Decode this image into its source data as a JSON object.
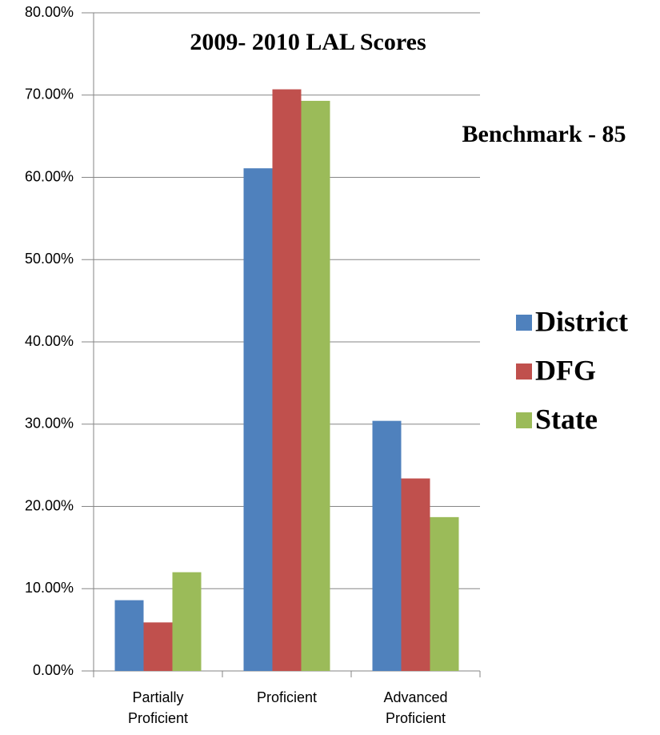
{
  "chart_data": {
    "type": "bar",
    "title": "2009- 2010 LAL Scores",
    "annotation": "Benchmark - 85",
    "categories": [
      "Partially Proficient",
      "Proficient",
      "Advanced Proficient"
    ],
    "series": [
      {
        "name": "District",
        "color": "#4f81bd",
        "values": [
          8.6,
          61.1,
          30.4
        ]
      },
      {
        "name": "DFG",
        "color": "#c0504d",
        "values": [
          5.9,
          70.7,
          23.4
        ]
      },
      {
        "name": "State",
        "color": "#9bbb59",
        "values": [
          12.0,
          69.3,
          18.7
        ]
      }
    ],
    "ylim": [
      0,
      80
    ],
    "yticks": [
      {
        "value": 0,
        "label": "0.00%"
      },
      {
        "value": 10,
        "label": "10.00%"
      },
      {
        "value": 20,
        "label": "20.00%"
      },
      {
        "value": 30,
        "label": "30.00%"
      },
      {
        "value": 40,
        "label": "40.00%"
      },
      {
        "value": 50,
        "label": "50.00%"
      },
      {
        "value": 60,
        "label": "60.00%"
      },
      {
        "value": 70,
        "label": "70.00%"
      },
      {
        "value": 80,
        "label": "80.00%"
      }
    ],
    "grid": true,
    "legend": "right"
  }
}
